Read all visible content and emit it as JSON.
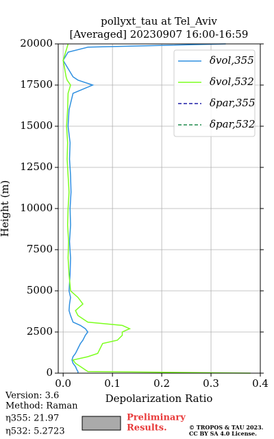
{
  "chart_data": {
    "type": "line",
    "title": "pollyxt_tau at Tel_Aviv",
    "subtitle": "[Averaged] 20230907 16:00-16:59",
    "xlabel": "Depolarization Ratio",
    "ylabel": "Height (m)",
    "y": [
      0,
      100,
      200,
      400,
      600,
      800,
      1000,
      1200,
      1500,
      1800,
      2000,
      2300,
      2500,
      2700,
      2900,
      3100,
      3500,
      3800,
      4200,
      4600,
      5000,
      6000,
      7000,
      8000,
      9000,
      10000,
      11000,
      12000,
      13000,
      14000,
      15000,
      16000,
      17000,
      17500,
      17800,
      18000,
      18500,
      19000,
      19500,
      19800,
      20000
    ],
    "series": [
      {
        "name": "δvol,355",
        "color": "#2e8fe0",
        "dash": false,
        "values": [
          0.03,
          0.03,
          0.028,
          0.025,
          0.02,
          0.018,
          0.02,
          0.025,
          0.03,
          0.035,
          0.04,
          0.045,
          0.05,
          0.045,
          0.035,
          0.02,
          0.015,
          0.012,
          0.013,
          0.015,
          0.012,
          0.014,
          0.015,
          0.013,
          0.015,
          0.014,
          0.016,
          0.015,
          0.013,
          0.014,
          0.01,
          0.012,
          0.02,
          0.06,
          0.03,
          0.02,
          0.01,
          0.0,
          0.01,
          0.05,
          0.33
        ]
      },
      {
        "name": "δvol,532",
        "color": "#7cff1e",
        "dash": false,
        "values": [
          0.38,
          0.05,
          0.045,
          0.035,
          0.025,
          0.02,
          0.05,
          0.07,
          0.075,
          0.08,
          0.11,
          0.12,
          0.12,
          0.135,
          0.12,
          0.05,
          0.03,
          0.025,
          0.04,
          0.03,
          0.015,
          0.012,
          0.01,
          0.011,
          0.009,
          0.01,
          0.012,
          0.01,
          0.008,
          0.009,
          0.007,
          0.009,
          0.01,
          0.015,
          0.008,
          0.006,
          0.003,
          0.0,
          0.005,
          0.008,
          0.01
        ]
      },
      {
        "name": "δpar,355",
        "color": "#1a1aa6",
        "dash": true,
        "values": [
          null,
          null,
          null,
          null,
          null,
          null,
          null,
          null,
          null,
          null,
          null,
          null,
          null,
          null,
          null,
          null,
          null,
          null,
          null,
          null,
          null,
          null,
          null,
          null,
          null,
          null,
          null,
          null,
          null,
          null,
          null,
          null,
          null,
          null,
          null,
          null,
          null,
          null,
          null,
          null,
          null
        ]
      },
      {
        "name": "δpar,532",
        "color": "#1f8a4c",
        "dash": true,
        "values": [
          null,
          null,
          null,
          null,
          null,
          null,
          null,
          null,
          null,
          null,
          null,
          null,
          null,
          null,
          null,
          null,
          null,
          null,
          null,
          null,
          null,
          null,
          null,
          null,
          null,
          null,
          null,
          null,
          null,
          null,
          null,
          null,
          null,
          null,
          null,
          null,
          null,
          null,
          null,
          null,
          null
        ]
      }
    ],
    "xlim": [
      -0.01,
      0.4
    ],
    "ylim": [
      0,
      20000
    ],
    "xticks": [
      {
        "value": 0,
        "label": "0.0"
      },
      0.1,
      0.2,
      0.3,
      0.4
    ],
    "yticks": [
      0,
      2500,
      5000,
      7500,
      10000,
      12500,
      15000,
      17500,
      20000
    ],
    "grid": true,
    "legend": "upper right"
  },
  "footer": {
    "version": "Version: 3.6",
    "method": "Method: Raman",
    "eta355": "η355:  21.97",
    "eta532": "η532: 5.2723",
    "preliminary": "Preliminary",
    "results": "Results.",
    "copyright": "© TROPOS & TAU 2023.",
    "license": "CC BY SA 4.0 License."
  }
}
